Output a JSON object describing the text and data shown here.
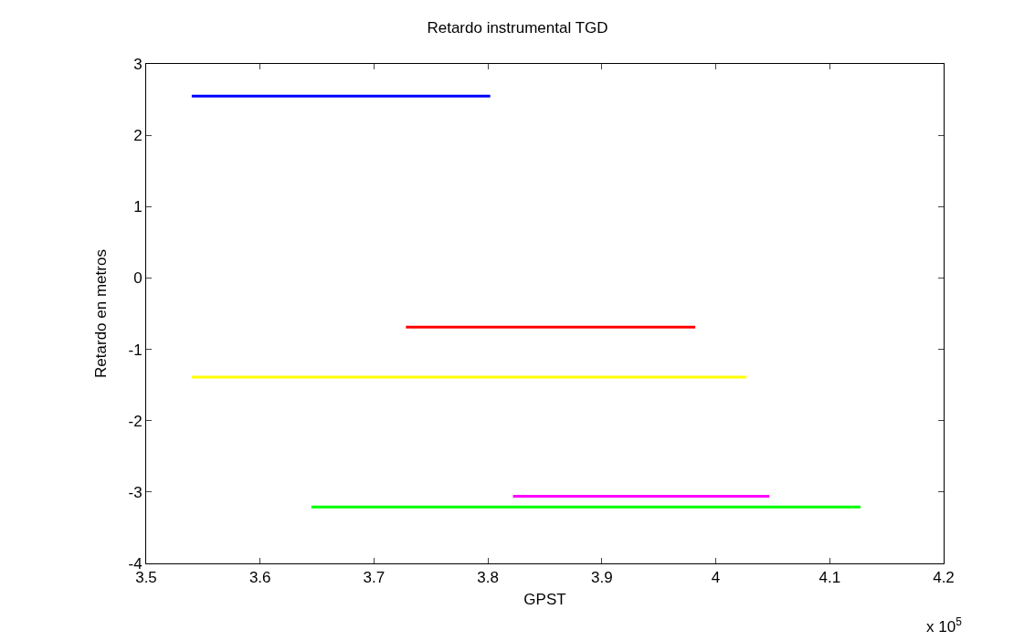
{
  "chart_data": {
    "type": "line",
    "title": "Retardo instrumental TGD",
    "xlabel": "GPST",
    "ylabel": "Retardo en metros",
    "series": [
      {
        "color": "#0000ff",
        "x": [
          3.54,
          3.802
        ],
        "values": [
          2.55,
          2.55
        ]
      },
      {
        "color": "#ff0000",
        "x": [
          3.728,
          3.982
        ],
        "values": [
          -0.69,
          -0.69
        ]
      },
      {
        "color": "#ffff00",
        "x": [
          3.54,
          4.027
        ],
        "values": [
          -1.39,
          -1.39
        ]
      },
      {
        "color": "#ff00ff",
        "x": [
          3.822,
          4.047
        ],
        "values": [
          -3.06,
          -3.06
        ]
      },
      {
        "color": "#00ff00",
        "x": [
          3.645,
          4.127
        ],
        "values": [
          -3.21,
          -3.21
        ]
      }
    ],
    "xlim": [
      3.5,
      4.2
    ],
    "xticks": [
      3.5,
      3.6,
      3.7,
      3.8,
      3.9,
      4,
      4.1,
      4.2
    ],
    "ylim": [
      -4,
      3
    ],
    "yticks": [
      -4,
      -3,
      -2,
      -1,
      0,
      1,
      2,
      3
    ],
    "grid": false,
    "marker": "none",
    "line_style": "solid",
    "annotations": [
      "x 10$^{5}$"
    ]
  }
}
